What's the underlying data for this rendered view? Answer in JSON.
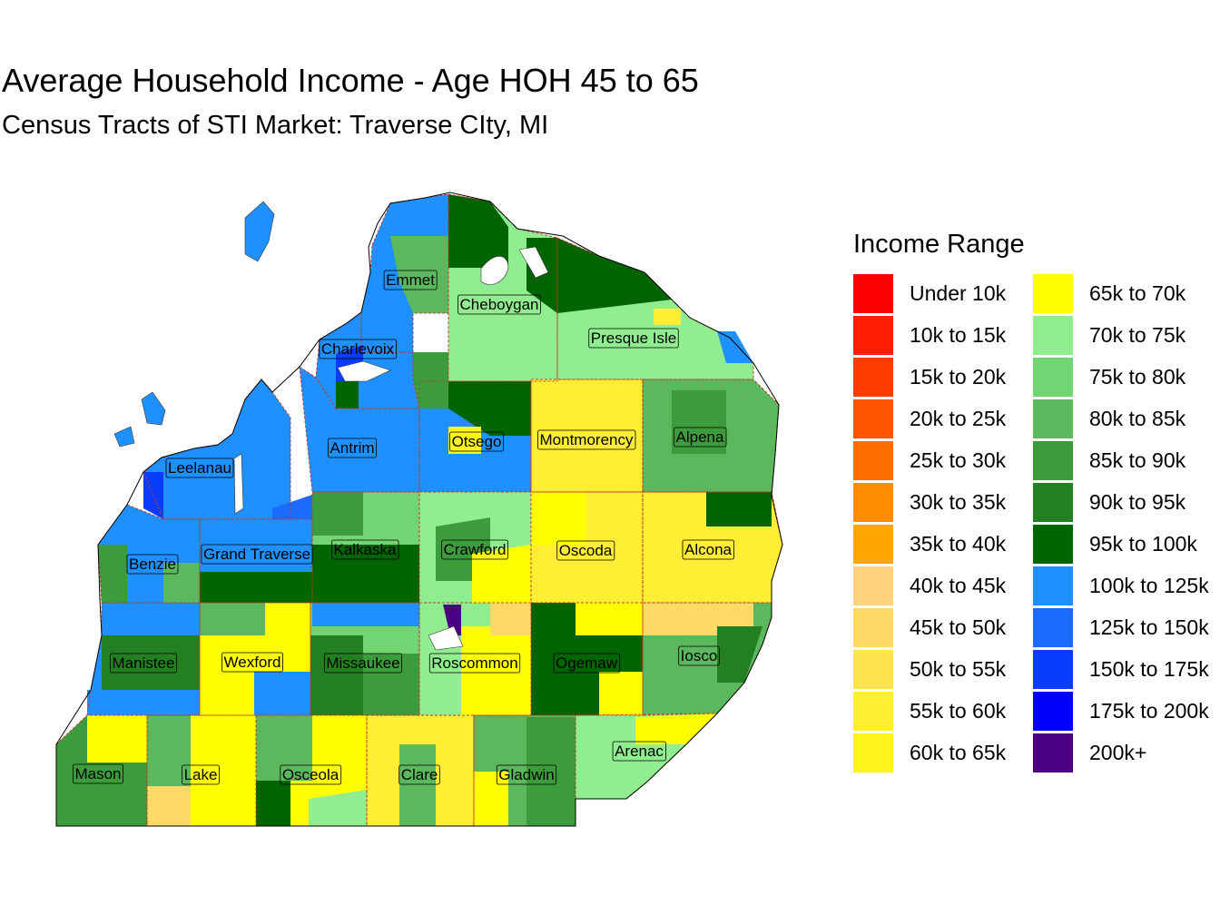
{
  "title": "Average Household Income - Age HOH 45 to 65",
  "subtitle": "Census Tracts of STI Market: Traverse CIty, MI",
  "legend": {
    "title": "Income Range",
    "items": [
      {
        "label": "Under 10k",
        "color": "#FF0000"
      },
      {
        "label": "10k to 15k",
        "color": "#FF1E00"
      },
      {
        "label": "15k to 20k",
        "color": "#FF3C00"
      },
      {
        "label": "20k to 25k",
        "color": "#FF5500"
      },
      {
        "label": "25k to 30k",
        "color": "#FF6E00"
      },
      {
        "label": "30k to 35k",
        "color": "#FF8C00"
      },
      {
        "label": "35k to 40k",
        "color": "#FFA500"
      },
      {
        "label": "40k to 45k",
        "color": "#FFD27F"
      },
      {
        "label": "45k to 50k",
        "color": "#FFD966"
      },
      {
        "label": "50k to 55k",
        "color": "#FFE44D"
      },
      {
        "label": "55k to 60k",
        "color": "#FFEE33"
      },
      {
        "label": "60k to 65k",
        "color": "#FFF51A"
      },
      {
        "label": "65k to 70k",
        "color": "#FFFF00"
      },
      {
        "label": "70k to 75k",
        "color": "#90EE90"
      },
      {
        "label": "75k to 80k",
        "color": "#73D473"
      },
      {
        "label": "80k to 85k",
        "color": "#5CB85C"
      },
      {
        "label": "85k to 90k",
        "color": "#3C9C3C"
      },
      {
        "label": "90k to 95k",
        "color": "#228022"
      },
      {
        "label": "95k to 100k",
        "color": "#006400"
      },
      {
        "label": "100k to 125k",
        "color": "#1E90FF"
      },
      {
        "label": "125k to 150k",
        "color": "#1A6BFF"
      },
      {
        "label": "150k to 175k",
        "color": "#0A3CFF"
      },
      {
        "label": "175k to 200k",
        "color": "#0000FF"
      },
      {
        "label": "200k+",
        "color": "#4B0082"
      }
    ]
  },
  "counties": [
    {
      "name": "Emmet",
      "income_range": "100k to 125k"
    },
    {
      "name": "Cheboygan",
      "income_range": "70k to 75k"
    },
    {
      "name": "Presque Isle",
      "income_range": "70k to 75k"
    },
    {
      "name": "Charlevoix",
      "income_range": "100k to 125k"
    },
    {
      "name": "Antrim",
      "income_range": "100k to 125k"
    },
    {
      "name": "Otsego",
      "income_range": "100k to 125k"
    },
    {
      "name": "Montmorency",
      "income_range": "55k to 60k"
    },
    {
      "name": "Alpena",
      "income_range": "80k to 85k"
    },
    {
      "name": "Leelanau",
      "income_range": "100k to 125k"
    },
    {
      "name": "Benzie",
      "income_range": "100k to 125k"
    },
    {
      "name": "Grand Traverse",
      "income_range": "100k to 125k"
    },
    {
      "name": "Kalkaska",
      "income_range": "75k to 80k"
    },
    {
      "name": "Crawford",
      "income_range": "70k to 75k"
    },
    {
      "name": "Oscoda",
      "income_range": "55k to 60k"
    },
    {
      "name": "Alcona",
      "income_range": "55k to 60k"
    },
    {
      "name": "Manistee",
      "income_range": "100k to 125k"
    },
    {
      "name": "Wexford",
      "income_range": "65k to 70k"
    },
    {
      "name": "Missaukee",
      "income_range": "75k to 80k"
    },
    {
      "name": "Roscommon",
      "income_range": "70k to 75k"
    },
    {
      "name": "Ogemaw",
      "income_range": "95k to 100k"
    },
    {
      "name": "Iosco",
      "income_range": "80k to 85k"
    },
    {
      "name": "Mason",
      "income_range": "85k to 90k"
    },
    {
      "name": "Lake",
      "income_range": "65k to 70k"
    },
    {
      "name": "Osceola",
      "income_range": "65k to 70k"
    },
    {
      "name": "Clare",
      "income_range": "55k to 60k"
    },
    {
      "name": "Gladwin",
      "income_range": "80k to 85k"
    },
    {
      "name": "Arenac",
      "income_range": "70k to 75k"
    }
  ]
}
